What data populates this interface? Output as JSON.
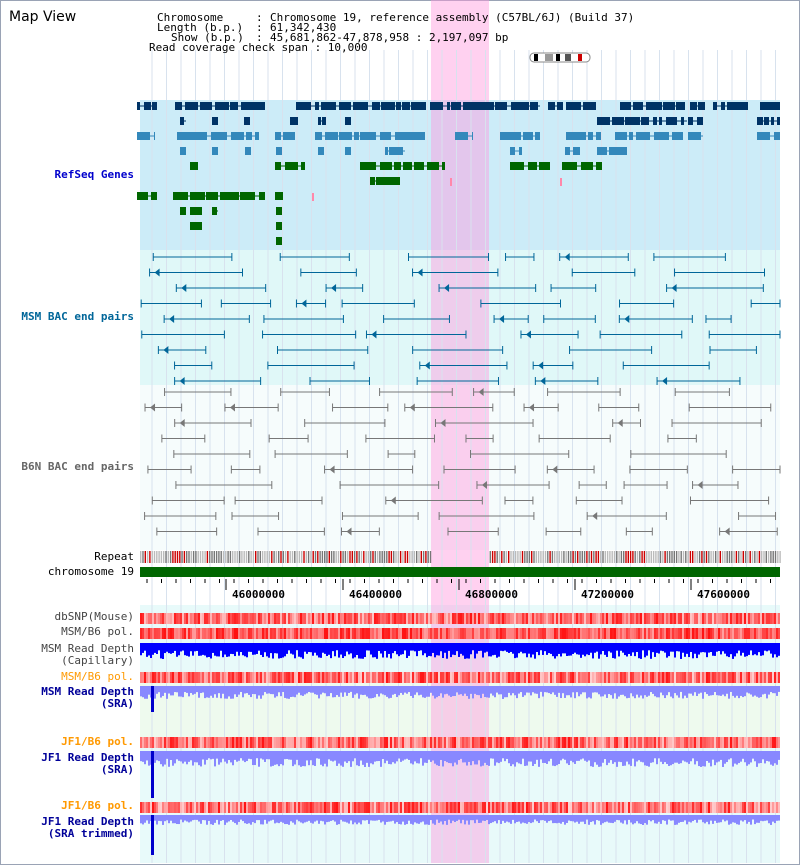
{
  "title": "Map View",
  "info": {
    "chromosome_key": "Chromosome",
    "chromosome_val": "Chromosome 19, reference assembly (C57BL/6J) (Build 37)",
    "length_key": "Length (b.p.)",
    "length_val": "61,342,430",
    "show_key": "Show (b.p.)",
    "show_val": "45,681,862-47,878,958 : 2,197,097 bp",
    "coverage": "Read coverage check span : 10,000"
  },
  "tracks": {
    "refseq": "RefSeq Genes",
    "msm_bac": "MSM BAC end pairs",
    "b6n_bac": "B6N BAC end pairs",
    "repeat": "Repeat",
    "chrom": "chromosome 19",
    "dbsnp": "dbSNP(Mouse)",
    "msm_b6_pol": "MSM/B6 pol.",
    "msm_depth_cap_1": "MSM Read Depth",
    "msm_depth_cap_2": "(Capillary)",
    "msm_b6_pol_2": "MSM/B6 pol.",
    "msm_depth_sra_1": "MSM Read Depth",
    "msm_depth_sra_2": "(SRA)",
    "jf1_pol": "JF1/B6 pol.",
    "jf1_depth_sra_1": "JF1 Read Depth",
    "jf1_depth_sra_2": "(SRA)",
    "jf1_pol_2": "JF1/B6 pol.",
    "jf1_depth_trim_1": "JF1 Read Depth",
    "jf1_depth_trim_2": "(SRA trimmed)"
  },
  "axis_ticks": [
    "46000000",
    "46400000",
    "46800000",
    "47200000",
    "47600000"
  ],
  "colors": {
    "refseq_label": "#0000cc",
    "msm_bac_label": "#006699",
    "b6n_bac_label": "#666666",
    "orange_label": "#ff9900",
    "navy_label": "#000099",
    "highlight": "#ff99dd",
    "refseq_bg": "#ccecf8",
    "bac_bg": "#e0f8f8",
    "chromosome_bar": "#006600",
    "gene_dark": "#003366",
    "gene_mid": "#3388bb",
    "gene_green": "#006600",
    "depth_blue": "#0000ff",
    "depth_light": "#8888ff"
  }
}
